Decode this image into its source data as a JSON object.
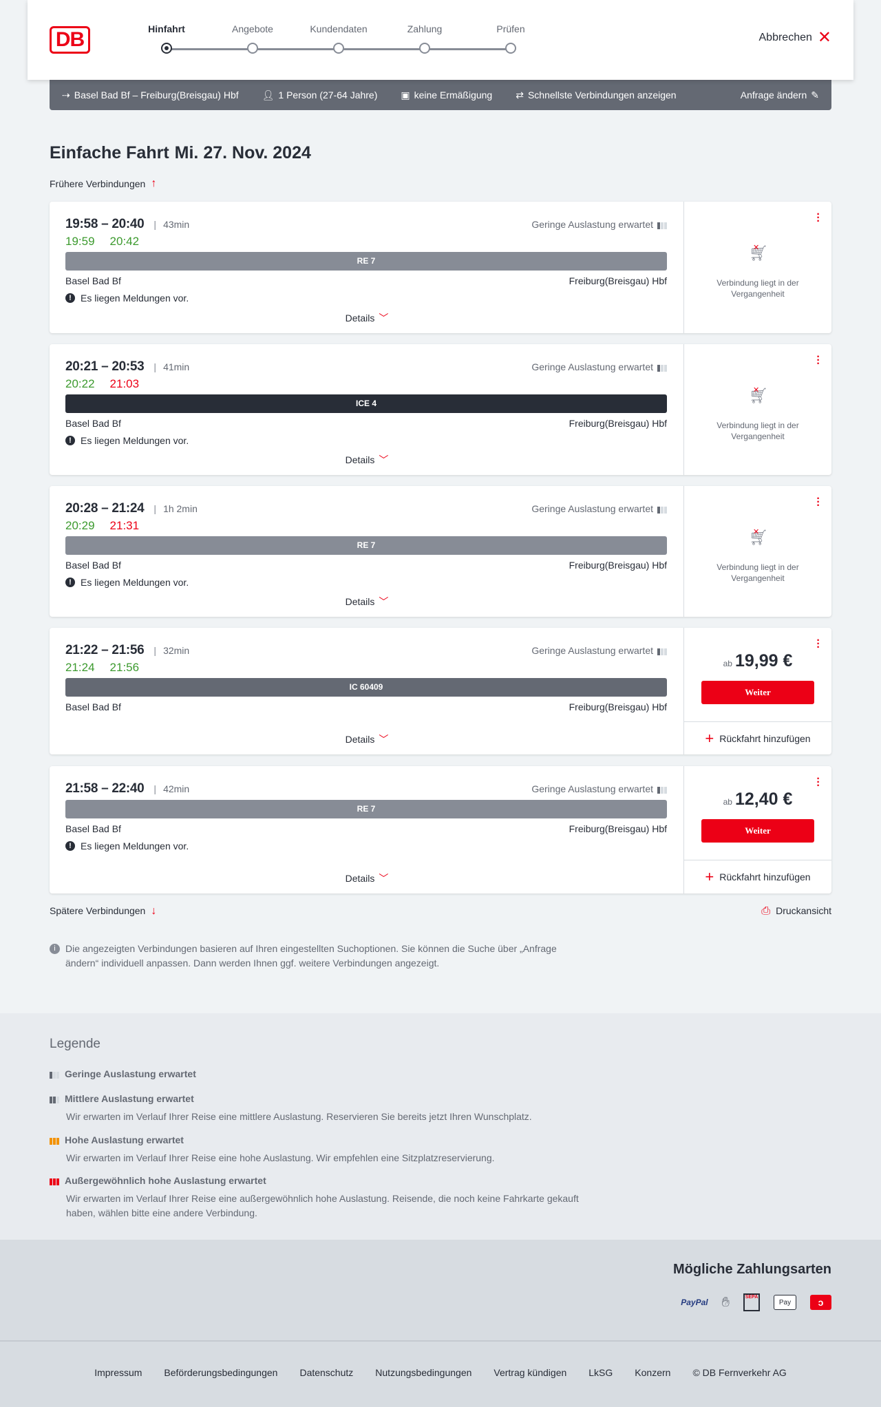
{
  "header": {
    "logo": "DB",
    "steps": [
      "Hinfahrt",
      "Angebote",
      "Kundendaten",
      "Zahlung",
      "Prüfen"
    ],
    "active_step": 0,
    "cancel": "Abbrechen"
  },
  "summary": {
    "route": "Basel Bad Bf – Freiburg(Breisgau) Hbf",
    "travelers": "1 Person (27-64 Jahre)",
    "discount": "keine Ermäßigung",
    "filter": "Schnellste Verbindungen anzeigen",
    "edit": "Anfrage ändern"
  },
  "page": {
    "title": "Einfache Fahrt",
    "date": "Mi. 27. Nov. 2024",
    "earlier": "Frühere Verbindungen",
    "later": "Spätere Verbindungen",
    "print": "Druckansicht",
    "info": "Die angezeigten Verbindungen basieren auf Ihren eingestellten Suchoptionen. Sie können die Suche über „Anfrage ändern“ individuell anpassen. Dann werden Ihnen ggf. weitere Verbindungen angezeigt."
  },
  "common": {
    "from": "Basel Bad Bf",
    "to": "Freiburg(Breisgau) Hbf",
    "load": "Geringe Auslastung erwartet",
    "message": "Es liegen Meldungen vor.",
    "details": "Details",
    "past": "Verbindung liegt in der Vergangenheit",
    "ab": "ab",
    "weiter": "Weiter",
    "return": "Rückfahrt hinzufügen"
  },
  "connections": [
    {
      "times": "19:58 – 20:40",
      "duration": "43min",
      "rt_dep": "19:59",
      "rt_arr": "20:42",
      "rt_dep_status": "on-time",
      "rt_arr_status": "on-time",
      "train": "RE 7",
      "train_color": "#878c96"
    },
    {
      "times": "20:21 – 20:53",
      "duration": "41min",
      "rt_dep": "20:22",
      "rt_arr": "21:03",
      "rt_dep_status": "on-time",
      "rt_arr_status": "delayed",
      "train": "ICE 4",
      "train_color": "#282d37"
    },
    {
      "times": "20:28 – 21:24",
      "duration": "1h 2min",
      "rt_dep": "20:29",
      "rt_arr": "21:31",
      "rt_dep_status": "on-time",
      "rt_arr_status": "delayed",
      "train": "RE 7",
      "train_color": "#878c96"
    },
    {
      "times": "21:22 – 21:56",
      "duration": "32min",
      "rt_dep": "21:24",
      "rt_arr": "21:56",
      "rt_dep_status": "on-time",
      "rt_arr_status": "on-time",
      "train": "IC 60409",
      "train_color": "#646973",
      "price": "19,99 €"
    },
    {
      "times": "21:58 – 22:40",
      "duration": "42min",
      "train": "RE 7",
      "train_color": "#878c96",
      "price": "12,40 €"
    }
  ],
  "legend": {
    "title": "Legende",
    "items": [
      {
        "title": "Geringe Auslastung erwartet"
      },
      {
        "title": "Mittlere Auslastung erwartet",
        "text": "Wir erwarten im Verlauf Ihrer Reise eine mittlere Auslastung. Reservieren Sie bereits jetzt Ihren Wunschplatz."
      },
      {
        "title": "Hohe Auslastung erwartet",
        "text": "Wir erwarten im Verlauf Ihrer Reise eine hohe Auslastung. Wir empfehlen eine Sitzplatzreservierung."
      },
      {
        "title": "Außergewöhnlich hohe Auslastung erwartet",
        "text": "Wir erwarten im Verlauf Ihrer Reise eine außergewöhnlich hohe Auslastung. Reisende, die noch keine Fahrkarte gekauft haben, wählen bitte eine andere Verbindung."
      }
    ]
  },
  "payment": {
    "title": "Mögliche Zahlungsarten",
    "methods": [
      "PayPal",
      "Kreditkarte",
      "SEPA",
      "Apple Pay",
      "DB"
    ]
  },
  "footer": {
    "links": [
      "Impressum",
      "Beförderungsbedingungen",
      "Datenschutz",
      "Nutzungsbedingungen",
      "Vertrag kündigen",
      "LkSG",
      "Konzern",
      "© DB Fernverkehr AG"
    ]
  },
  "colors": {
    "brand": "#ec0016",
    "on_time": "#3c9a2e",
    "delayed": "#ec0016",
    "summary_bar": "#646973"
  }
}
